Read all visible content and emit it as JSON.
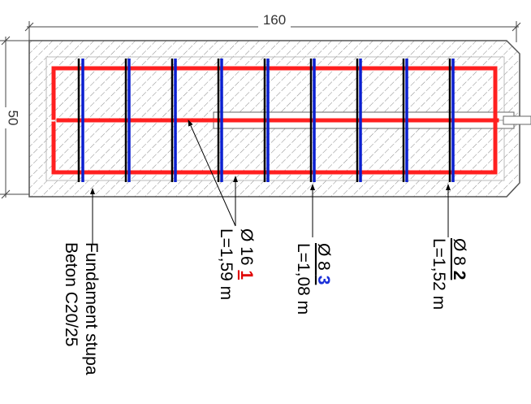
{
  "dimensions": {
    "width_label": "160",
    "height_label": "50"
  },
  "annotations": {
    "concrete_line1": "Fundament stupa",
    "concrete_line2": "Beton C20/25",
    "bar1_name_prefix": "Ø 16 ",
    "bar1_mark": "1",
    "bar1_length": "L=1,59 m",
    "bar3_name_prefix": "Ø 8 ",
    "bar3_mark": "3",
    "bar3_length": "L=1,08 m",
    "bar2_name_prefix": "Ø 8 ",
    "bar2_mark": "2",
    "bar2_length": "L=1,52 m"
  },
  "colors": {
    "main_rebar": "#ff2020",
    "stirrup_rebar": "#0a1fd0",
    "outline": "#555555",
    "hatch": "#8a8a8a",
    "mark1": "#e00000",
    "mark3": "#1a2fd8",
    "mark2": "#000000"
  }
}
